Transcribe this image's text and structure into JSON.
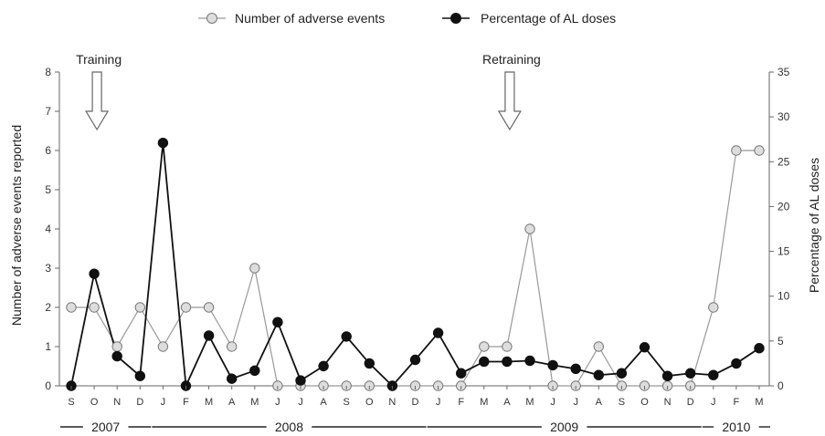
{
  "chart_data": {
    "type": "line",
    "categories": [
      "S",
      "O",
      "N",
      "D",
      "J",
      "F",
      "M",
      "A",
      "M",
      "J",
      "J",
      "A",
      "S",
      "O",
      "N",
      "D",
      "J",
      "F",
      "M",
      "A",
      "M",
      "J",
      "J",
      "A",
      "S",
      "O",
      "N",
      "D",
      "J",
      "F",
      "M"
    ],
    "years": [
      {
        "label": "2007",
        "start": 0,
        "end": 3
      },
      {
        "label": "2008",
        "start": 4,
        "end": 15
      },
      {
        "label": "2009",
        "start": 16,
        "end": 27
      },
      {
        "label": "2010",
        "start": 28,
        "end": 30
      }
    ],
    "series": [
      {
        "name": "Number of adverse events",
        "axis": "left",
        "color": "#999999",
        "marker_fill": "#dddddd",
        "values": [
          2,
          2,
          1,
          2,
          1,
          2,
          2,
          1,
          3,
          0,
          0,
          0,
          0,
          0,
          0,
          0,
          0,
          0,
          1,
          1,
          4,
          0,
          0,
          1,
          0,
          0,
          0,
          0,
          2,
          6,
          6
        ]
      },
      {
        "name": "Percentage of AL doses",
        "axis": "right",
        "color": "#111111",
        "marker_fill": "#111111",
        "values": [
          0,
          12.5,
          3.3,
          1.1,
          27.1,
          0,
          5.6,
          0.8,
          1.7,
          7.1,
          0.6,
          2.2,
          5.5,
          2.5,
          0,
          2.9,
          5.9,
          1.4,
          2.7,
          2.7,
          2.8,
          2.3,
          1.9,
          1.2,
          1.4,
          4.3,
          1.1,
          1.4,
          1.2,
          2.5,
          4.2
        ]
      }
    ],
    "y_left": {
      "label": "Number of adverse events reported",
      "min": 0,
      "max": 8,
      "ticks": [
        0,
        1,
        2,
        3,
        4,
        5,
        6,
        7,
        8
      ]
    },
    "y_right": {
      "label": "Percentage of AL doses",
      "min": 0,
      "max": 35,
      "ticks": [
        0,
        5,
        10,
        15,
        20,
        25,
        30,
        35
      ]
    },
    "annotations": [
      {
        "text": "Training",
        "index": 1
      },
      {
        "text": "Retraining",
        "index": 19
      }
    ],
    "legend": {
      "position": "top-center"
    },
    "grid": false
  }
}
